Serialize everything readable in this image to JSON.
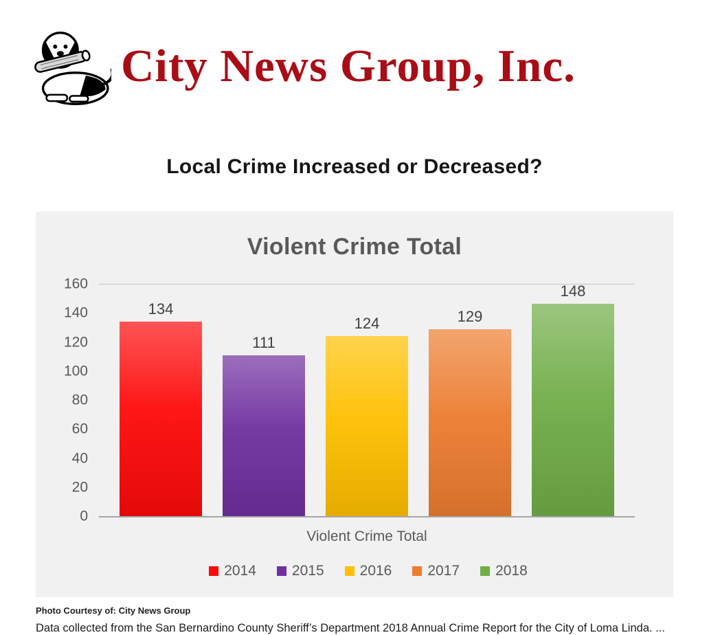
{
  "page": {
    "brand": "City News Group, Inc.",
    "headline": "Local Crime Increased or Decreased?",
    "photo_credit": "Photo Courtesy of: City News Group",
    "caption": "Data collected from the San Bernardino County Sheriff’s Department 2018 Annual Crime Report for the City of Loma Linda. ..."
  },
  "chart_data": {
    "type": "bar",
    "title": "Violent Crime Total",
    "xlabel": "Violent Crime Total",
    "ylabel": "",
    "ylim": [
      0,
      160
    ],
    "yticks": [
      0,
      20,
      40,
      60,
      80,
      100,
      120,
      140,
      160
    ],
    "categories": [
      "2014",
      "2015",
      "2016",
      "2017",
      "2018"
    ],
    "values": [
      134,
      111,
      124,
      129,
      148
    ],
    "colors": [
      "#fe0a0a",
      "#7030a0",
      "#ffc000",
      "#ed7d31",
      "#70ad47"
    ],
    "legend_position": "bottom",
    "grid": false
  }
}
